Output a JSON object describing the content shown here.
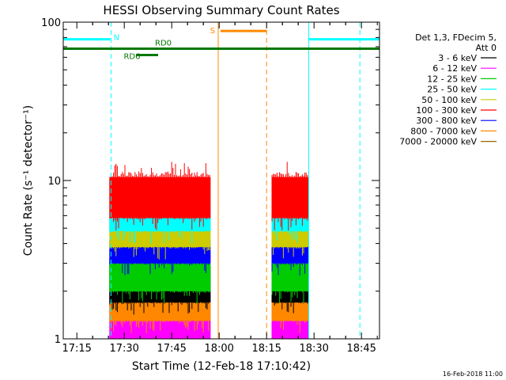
{
  "chart_data": {
    "type": "line",
    "title": "HESSI Observing Summary Count Rates",
    "xlabel": "Start Time (12-Feb-18 17:10:42)",
    "ylabel": "Count Rate (s⁻¹ detector⁻¹)",
    "x_unit": "minutes after 17:10:42",
    "xlim": [
      0,
      100
    ],
    "ylim": [
      1,
      100
    ],
    "yscale": "log",
    "x_ticks": [
      {
        "label": "17:15",
        "value": 4.3
      },
      {
        "label": "17:30",
        "value": 19.3
      },
      {
        "label": "17:45",
        "value": 34.3
      },
      {
        "label": "18:00",
        "value": 49.3
      },
      {
        "label": "18:15",
        "value": 64.3
      },
      {
        "label": "18:30",
        "value": 79.3
      },
      {
        "label": "18:45",
        "value": 94.3
      }
    ],
    "y_ticks": [
      {
        "label": "1",
        "value": 1
      },
      {
        "label": "10",
        "value": 10
      },
      {
        "label": "100",
        "value": 100
      }
    ],
    "legend": {
      "placement": "right",
      "header": [
        "Det 1,3, FDecim 5,",
        "Att 0"
      ],
      "entries": [
        {
          "label": "3 - 6 keV",
          "color": "#000000"
        },
        {
          "label": "6 - 12 keV",
          "color": "#ff00ff"
        },
        {
          "label": "12 - 25 keV",
          "color": "#00cc00"
        },
        {
          "label": "25 - 50 keV",
          "color": "#00ffff"
        },
        {
          "label": "50 - 100 keV",
          "color": "#cccc00"
        },
        {
          "label": "100 - 300 keV",
          "color": "#ff0000"
        },
        {
          "label": "300 - 800 keV",
          "color": "#0000ff"
        },
        {
          "label": "800 - 7000 keV",
          "color": "#ff8800"
        },
        {
          "label": "7000 - 20000 keV",
          "color": "#996600"
        }
      ]
    },
    "segments": [
      {
        "t0": 14.7,
        "t1": 46.6
      },
      {
        "t0": 66.0,
        "t1": 77.6
      }
    ],
    "series": [
      {
        "name": "6 - 12 keV",
        "color": "#ff00ff",
        "min": 1.0,
        "max": 2.0
      },
      {
        "name": "800 - 7000 keV",
        "color": "#ff8800",
        "min": 1.3,
        "max": 2.0
      },
      {
        "name": "3 - 6 keV",
        "color": "#000000",
        "min": 1.7,
        "max": 2.9
      },
      {
        "name": "12 - 25 keV",
        "color": "#00cc00",
        "min": 2.0,
        "max": 3.0
      },
      {
        "name": "300 - 800 keV",
        "color": "#0000ff",
        "min": 3.0,
        "max": 4.2
      },
      {
        "name": "50 - 100 keV",
        "color": "#cccc00",
        "min": 3.8,
        "max": 5.5
      },
      {
        "name": "25 - 50 keV",
        "color": "#00ffff",
        "min": 4.8,
        "max": 6.4
      },
      {
        "name": "100 - 300 keV",
        "color": "#ff0000",
        "min": 5.8,
        "max": 10.5
      }
    ],
    "night_intervals": [
      {
        "label": "N",
        "t0": 0.0,
        "t1": 14.9,
        "value": 78
      },
      {
        "label": "N",
        "t0": 77.6,
        "t1": 100.0,
        "value": 78
      }
    ],
    "saa_interval": {
      "label": "S",
      "t0": 49.0,
      "t1": 64.3,
      "value": 88
    },
    "decimation_line": {
      "t0": 0.0,
      "t1": 100.0,
      "value": 68,
      "color": "#007700"
    },
    "rd_marks": [
      {
        "label": "RD6",
        "t0": 23.0,
        "t1": 30.0,
        "value": 62
      },
      {
        "label": "RD0",
        "value": 68
      }
    ],
    "vertical_markers": [
      {
        "t": 15.1,
        "color": "#00ffff",
        "style": "dashed"
      },
      {
        "t": 77.6,
        "color": "#00ffff",
        "style": "solid"
      },
      {
        "t": 93.8,
        "color": "#00ffff",
        "style": "dashed"
      },
      {
        "t": 49.0,
        "color": "#ff8800",
        "style": "solid"
      },
      {
        "t": 64.3,
        "color": "#ff8800",
        "style": "dashed"
      }
    ]
  },
  "footer": {
    "timestamp": "16-Feb-2018 11:00"
  }
}
